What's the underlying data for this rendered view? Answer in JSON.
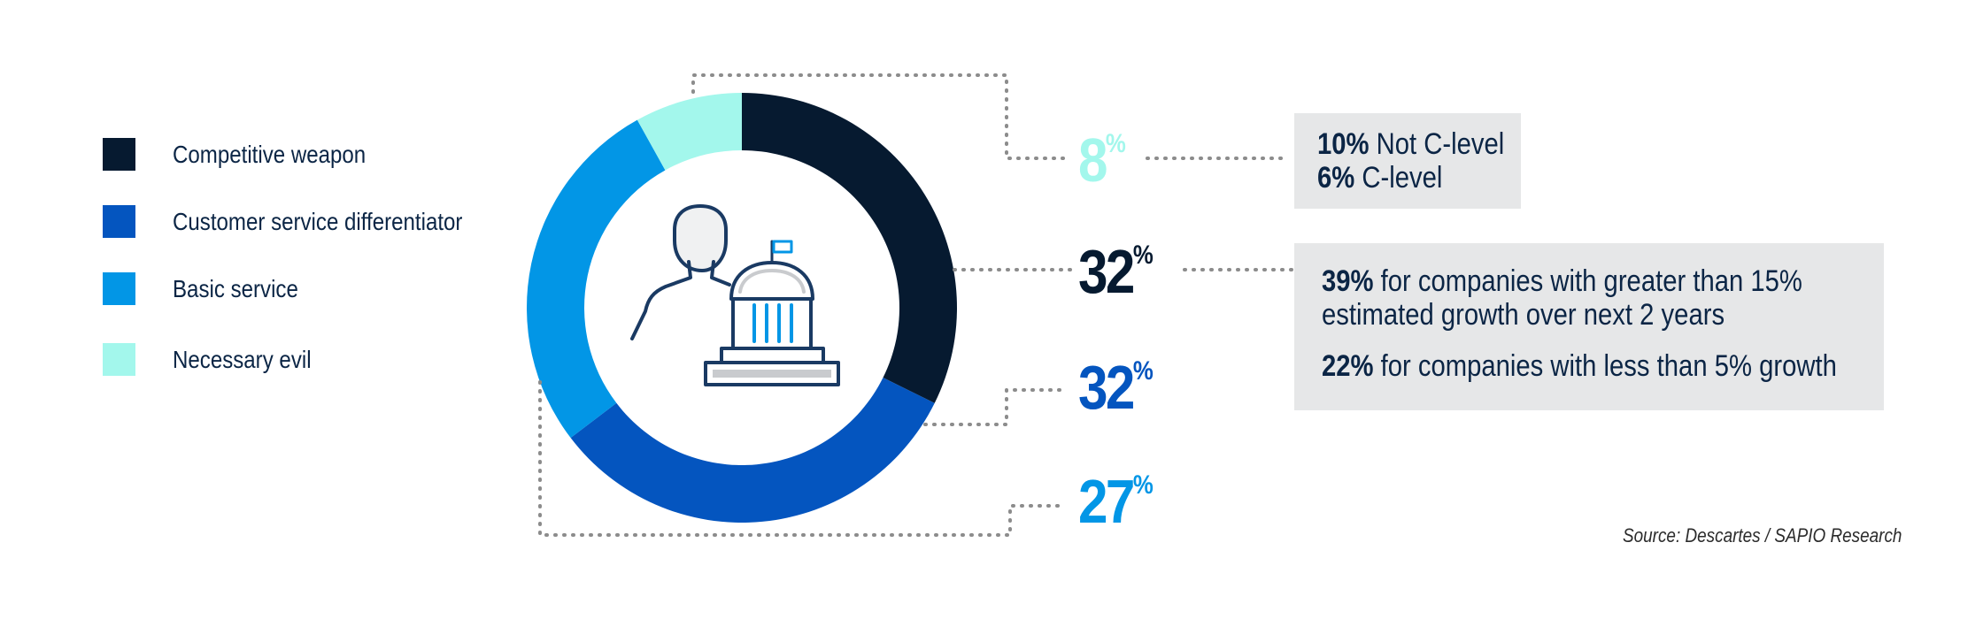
{
  "chart_data": {
    "type": "pie",
    "variant": "donut",
    "categories": [
      "Competitive weapon",
      "Customer service differentiator",
      "Basic service",
      "Necessary evil"
    ],
    "values": [
      32,
      32,
      27,
      8
    ],
    "value_labels": [
      "32",
      "32",
      "27",
      "8"
    ],
    "percent_symbol": "%",
    "colors": [
      "#061a30",
      "#0455bf",
      "#0296e6",
      "#a3f7ec"
    ],
    "legend_position": "left"
  },
  "callouts": {
    "necessary_evil": {
      "lines": [
        {
          "bold": "10%",
          "text": " Not C-level"
        },
        {
          "bold": "6%",
          "text": " C-level"
        }
      ]
    },
    "competitive_weapon": {
      "line1_bold": "39%",
      "line1_text": " for companies with greater than 15%",
      "line2_text": "estimated growth over next 2 years",
      "line3_bold": "22%",
      "line3_text": " for companies with less than 5% growth"
    }
  },
  "source": "Source: Descartes / SAPIO Research",
  "icon": "business-person-with-government-building-icon",
  "colors": {
    "text_dark": "#0b2545",
    "callout_bg": "#e6e7e8",
    "leader_line": "#8c8c8c"
  }
}
